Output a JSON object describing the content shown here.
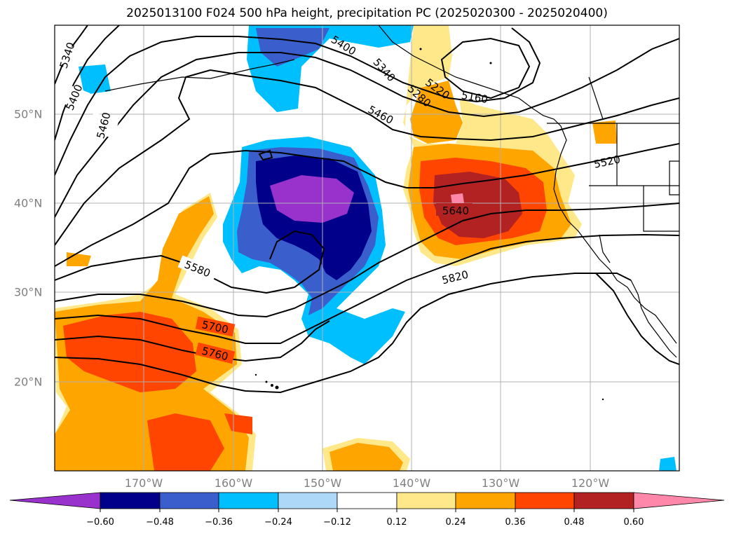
{
  "title": "2025013100 F024 500 hPa height, precipitation PC (2025020300 - 2025020400)",
  "map": {
    "lon_labels": [
      "170°W",
      "160°W",
      "150°W",
      "140°W",
      "130°W",
      "120°W"
    ],
    "lat_labels": [
      "50°N",
      "40°N",
      "30°N",
      "20°N"
    ],
    "contour_labels": [
      "5340",
      "5400",
      "5460",
      "5400",
      "5340",
      "5280",
      "5220",
      "5160",
      "5460",
      "5520",
      "5640",
      "5580",
      "5820",
      "5700",
      "5760"
    ]
  },
  "colorbar": {
    "ticks": [
      "−0.60",
      "−0.48",
      "−0.36",
      "−0.24",
      "−0.12",
      "0.12",
      "0.24",
      "0.36",
      "0.48",
      "0.60"
    ],
    "colors": [
      "#9932cc",
      "#00008b",
      "#3a5fcd",
      "#00bfff",
      "#add8f7",
      "#ffffff",
      "#ffe88a",
      "#ffa500",
      "#ff4500",
      "#b22222",
      "#ff88aa"
    ]
  }
}
